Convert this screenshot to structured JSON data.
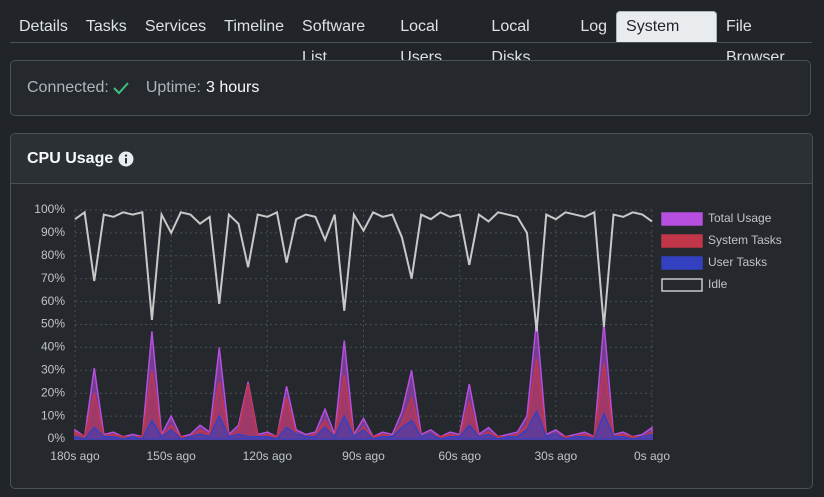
{
  "tabs": [
    "Details",
    "Tasks",
    "Services",
    "Timeline",
    "Software List",
    "Local Users",
    "Local Disks",
    "Log",
    "System Load",
    "File Browser"
  ],
  "active_tab": 8,
  "status": {
    "connected_label": "Connected:",
    "uptime_label": "Uptime:",
    "uptime_value": "3 hours"
  },
  "chart_data": {
    "type": "area",
    "title": "CPU Usage",
    "x": [
      180,
      177,
      174,
      171,
      168,
      165,
      162,
      159,
      156,
      153,
      150,
      147,
      144,
      141,
      138,
      135,
      132,
      129,
      126,
      123,
      120,
      117,
      114,
      111,
      108,
      105,
      102,
      99,
      96,
      93,
      90,
      87,
      84,
      81,
      78,
      75,
      72,
      69,
      66,
      63,
      60,
      57,
      54,
      51,
      48,
      45,
      42,
      39,
      36,
      33,
      30,
      27,
      24,
      21,
      18,
      15,
      12,
      9,
      6,
      3,
      0
    ],
    "series": [
      {
        "name": "Total Usage",
        "color": "#b64ee0",
        "style": "area",
        "values": [
          4,
          1,
          31,
          2,
          3,
          1,
          2,
          1,
          47,
          2,
          10,
          1,
          2,
          6,
          3,
          40,
          2,
          6,
          25,
          2,
          3,
          1,
          23,
          4,
          2,
          3,
          13,
          2,
          43,
          2,
          9,
          1,
          3,
          2,
          12,
          30,
          2,
          4,
          1,
          3,
          2,
          24,
          2,
          5,
          1,
          2,
          3,
          10,
          52,
          2,
          4,
          1,
          2,
          3,
          1,
          51,
          2,
          3,
          1,
          2,
          5
        ]
      },
      {
        "name": "System Tasks",
        "color": "#c2364a",
        "style": "area",
        "values": [
          3,
          1,
          20,
          1,
          2,
          1,
          1,
          1,
          30,
          1,
          6,
          1,
          1,
          4,
          2,
          25,
          1,
          4,
          24,
          1,
          2,
          1,
          18,
          2,
          1,
          2,
          8,
          1,
          28,
          1,
          5,
          1,
          2,
          1,
          7,
          18,
          1,
          2,
          1,
          2,
          1,
          16,
          1,
          3,
          1,
          1,
          2,
          6,
          35,
          1,
          2,
          1,
          1,
          2,
          1,
          33,
          1,
          2,
          1,
          1,
          3
        ]
      },
      {
        "name": "User Tasks",
        "color": "#3340c0",
        "style": "area",
        "values": [
          1,
          0,
          5,
          1,
          1,
          0,
          1,
          0,
          8,
          1,
          4,
          0,
          1,
          2,
          1,
          10,
          1,
          2,
          1,
          1,
          1,
          0,
          5,
          2,
          1,
          1,
          5,
          1,
          10,
          1,
          4,
          0,
          1,
          1,
          5,
          8,
          1,
          2,
          0,
          1,
          1,
          6,
          1,
          2,
          0,
          1,
          1,
          4,
          12,
          1,
          2,
          0,
          1,
          1,
          0,
          11,
          1,
          1,
          0,
          1,
          2
        ]
      },
      {
        "name": "Idle",
        "color": "#c8c8c8",
        "style": "line",
        "values": [
          96,
          99,
          69,
          98,
          97,
          99,
          98,
          99,
          52,
          98,
          90,
          99,
          98,
          94,
          97,
          59,
          98,
          94,
          75,
          98,
          97,
          99,
          77,
          96,
          98,
          97,
          87,
          98,
          56,
          98,
          91,
          99,
          97,
          98,
          88,
          70,
          98,
          96,
          99,
          97,
          98,
          76,
          98,
          95,
          99,
          98,
          97,
          90,
          47,
          98,
          96,
          99,
          98,
          97,
          99,
          49,
          98,
          97,
          99,
          98,
          95
        ]
      }
    ],
    "xlim": [
      180,
      0
    ],
    "xticks": [
      {
        "value": 180,
        "label": "180s ago"
      },
      {
        "value": 150,
        "label": "150s ago"
      },
      {
        "value": 120,
        "label": "120s ago"
      },
      {
        "value": 90,
        "label": "90s ago"
      },
      {
        "value": 60,
        "label": "60s ago"
      },
      {
        "value": 30,
        "label": "30s ago"
      },
      {
        "value": 0,
        "label": "0s ago"
      }
    ],
    "ylim": [
      0,
      100
    ],
    "yticks": [
      {
        "value": 0,
        "label": "0%"
      },
      {
        "value": 10,
        "label": "10%"
      },
      {
        "value": 20,
        "label": "20%"
      },
      {
        "value": 30,
        "label": "30%"
      },
      {
        "value": 40,
        "label": "40%"
      },
      {
        "value": 50,
        "label": "50%"
      },
      {
        "value": 60,
        "label": "60%"
      },
      {
        "value": 70,
        "label": "70%"
      },
      {
        "value": 80,
        "label": "80%"
      },
      {
        "value": 90,
        "label": "90%"
      },
      {
        "value": 100,
        "label": "100%"
      }
    ],
    "grid": true,
    "legend": "right"
  }
}
